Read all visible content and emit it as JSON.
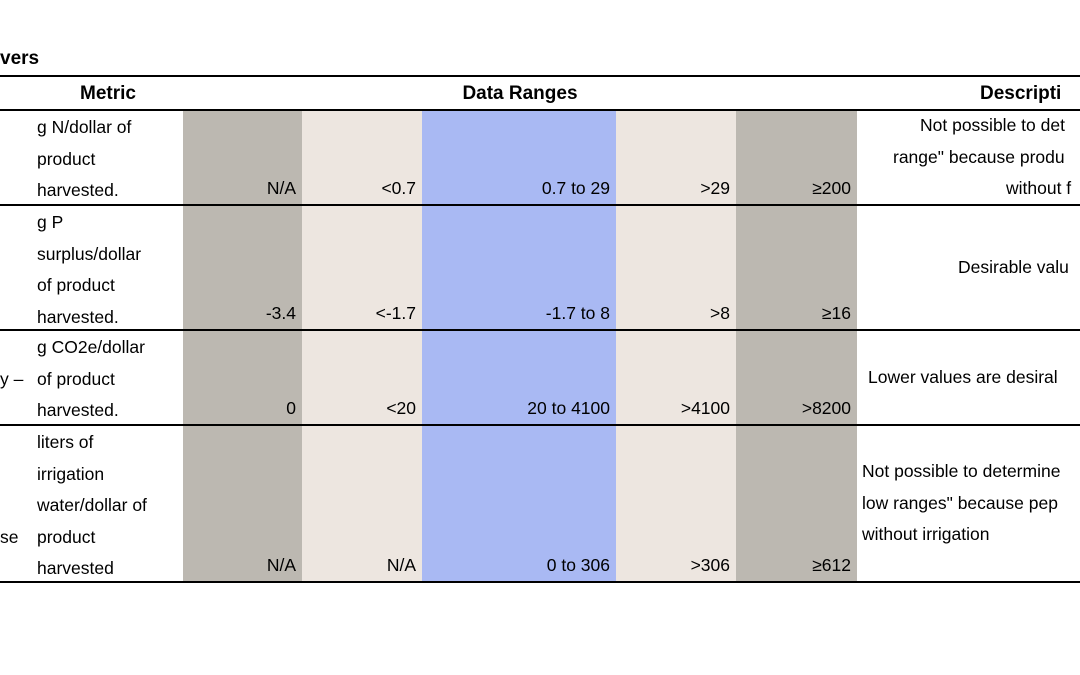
{
  "title": "vers",
  "table": {
    "headers": [
      "Metric",
      "Data Ranges",
      "Descripti"
    ],
    "rows": [
      {
        "metric": [
          "g N/dollar of",
          "product",
          "harvested."
        ],
        "ranges": [
          "N/A",
          "<0.7",
          "0.7 to 29",
          ">29",
          "≥200"
        ],
        "description": [
          "Not possible to det",
          "range\" because produ",
          "without f"
        ]
      },
      {
        "metric": [
          "g P",
          "surplus/dollar",
          "of product",
          "harvested."
        ],
        "ranges": [
          "-3.4",
          "<-1.7",
          "-1.7 to 8",
          ">8",
          "≥16"
        ],
        "description": [
          "Desirable valu"
        ]
      },
      {
        "left": "y –",
        "metric": [
          "g CO2e/dollar",
          "of product",
          "harvested."
        ],
        "ranges": [
          "0",
          "<20",
          "20 to 4100",
          ">4100",
          ">8200"
        ],
        "description": [
          "Lower values are desiral"
        ]
      },
      {
        "left": "se",
        "metric": [
          "liters of",
          "irrigation",
          "water/dollar of",
          "product",
          "harvested"
        ],
        "ranges": [
          "N/A",
          "N/A",
          "0 to 306",
          ">306",
          "≥612"
        ],
        "description": [
          "Not possible to determine",
          "low ranges\" because pep",
          "without irrigation"
        ]
      }
    ]
  }
}
